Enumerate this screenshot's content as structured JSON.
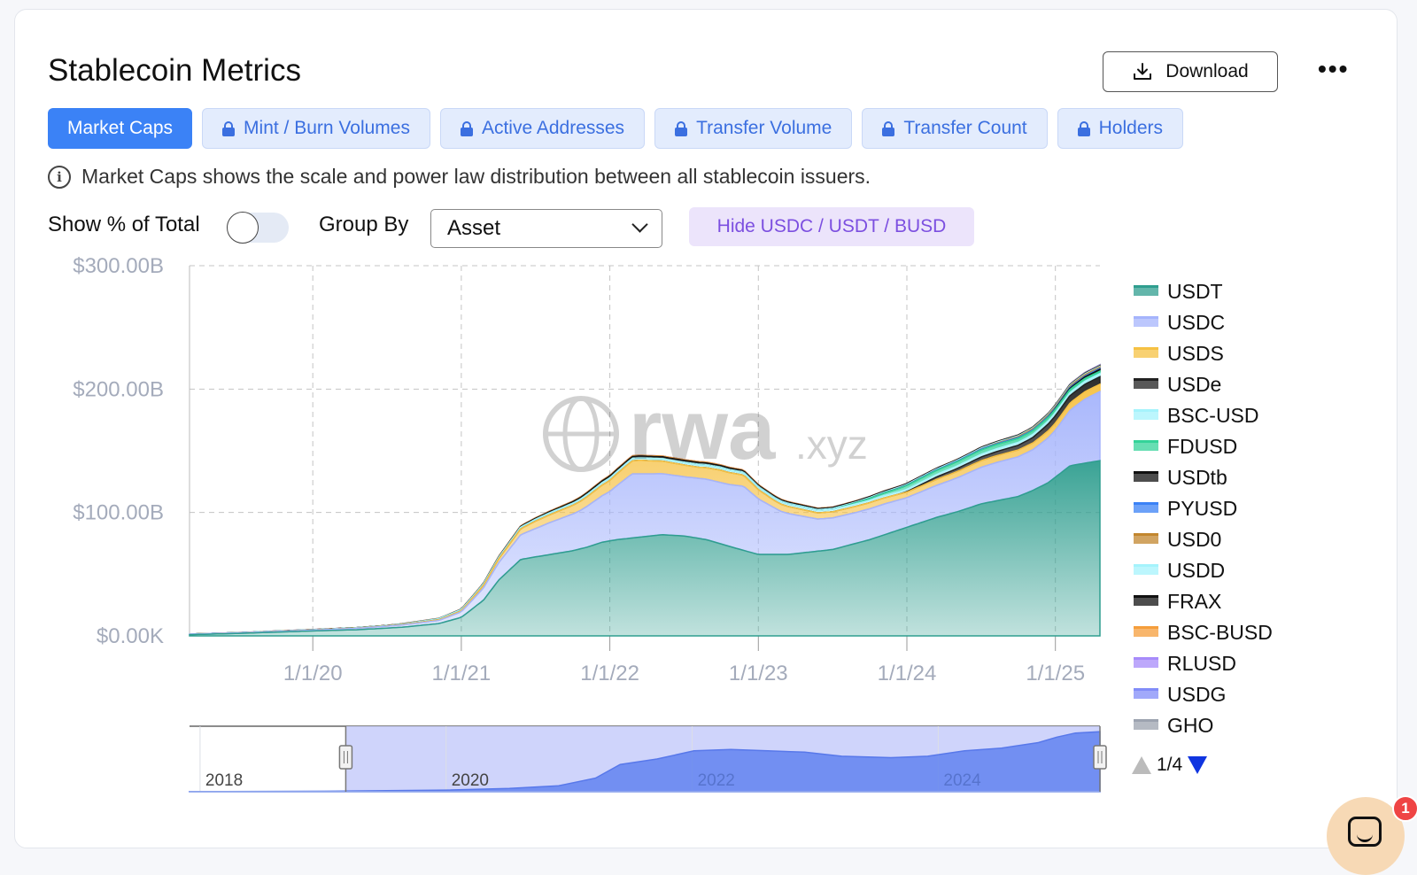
{
  "header": {
    "title": "Stablecoin Metrics",
    "download_label": "Download",
    "more_label": "•••"
  },
  "tabs": [
    {
      "label": "Market Caps",
      "active": true,
      "locked": false
    },
    {
      "label": "Mint / Burn Volumes",
      "active": false,
      "locked": true
    },
    {
      "label": "Active Addresses",
      "active": false,
      "locked": true
    },
    {
      "label": "Transfer Volume",
      "active": false,
      "locked": true
    },
    {
      "label": "Transfer Count",
      "active": false,
      "locked": true
    },
    {
      "label": "Holders",
      "active": false,
      "locked": true
    }
  ],
  "info": {
    "text": "Market Caps shows the scale and power law distribution between all stablecoin issuers."
  },
  "controls": {
    "show_pct_label": "Show % of Total",
    "show_pct_on": false,
    "group_by_label": "Group By",
    "group_by_value": "Asset",
    "hide_button": "Hide USDC / USDT / BUSD"
  },
  "watermark": {
    "main": "rwa",
    "suffix": ".xyz"
  },
  "colors": {
    "accent": "#3b82f6",
    "usdt": "#2f9e8f",
    "usdc": "#a5b4fc",
    "usds": "#f6c143"
  },
  "chart_data": {
    "type": "area",
    "stacked": true,
    "x_ticks": [
      "1/1/20",
      "1/1/21",
      "1/1/22",
      "1/1/23",
      "1/1/24",
      "1/1/25"
    ],
    "y_ticks": [
      "$0.00K",
      "$100.00B",
      "$200.00B",
      "$300.00B"
    ],
    "ylim": [
      0,
      300
    ],
    "x_range": [
      2019.17,
      2025.3
    ],
    "grid": true,
    "legend_position": "right",
    "series": [
      {
        "name": "USDT",
        "color": "#2f9e8f",
        "x": [
          2019.17,
          2019.5,
          2020.0,
          2020.3,
          2020.6,
          2020.85,
          2021.0,
          2021.15,
          2021.25,
          2021.4,
          2021.6,
          2021.75,
          2021.85,
          2021.95,
          2022.05,
          2022.2,
          2022.35,
          2022.5,
          2022.65,
          2022.85,
          2023.0,
          2023.2,
          2023.5,
          2023.75,
          2023.85,
          2024.0,
          2024.2,
          2024.35,
          2024.5,
          2024.75,
          2024.85,
          2024.95,
          2025.1,
          2025.3
        ],
        "values": [
          1,
          2,
          4,
          5,
          7,
          10,
          15,
          29,
          45,
          62,
          66,
          69,
          72,
          76,
          78,
          80,
          82,
          81,
          78,
          71,
          66,
          66,
          70,
          78,
          82,
          88,
          96,
          101,
          107,
          113,
          118,
          124,
          138,
          142
        ]
      },
      {
        "name": "USDC",
        "color": "#a5b4fc",
        "x": [
          2019.17,
          2019.5,
          2020.0,
          2020.5,
          2020.85,
          2021.0,
          2021.1,
          2021.25,
          2021.4,
          2021.6,
          2021.8,
          2022.0,
          2022.15,
          2022.3,
          2022.5,
          2022.65,
          2022.8,
          2022.9,
          2023.0,
          2023.15,
          2023.4,
          2023.65,
          2023.85,
          2024.0,
          2024.3,
          2024.6,
          2024.85,
          2025.0,
          2025.2,
          2025.3
        ],
        "values": [
          0.5,
          0.5,
          0.7,
          1.5,
          2.5,
          4.5,
          8,
          14,
          20,
          26,
          31,
          40,
          52,
          50,
          48,
          49,
          50,
          52,
          45,
          35,
          26,
          25,
          25,
          24,
          27,
          31,
          33,
          38,
          52,
          56
        ]
      },
      {
        "name": "USDS",
        "color": "#f6c143",
        "x": [
          2019.17,
          2020.5,
          2021.0,
          2021.25,
          2021.5,
          2021.75,
          2022.0,
          2022.2,
          2022.4,
          2022.6,
          2022.75,
          2022.9,
          2023.1,
          2023.4,
          2023.8,
          2024.0,
          2024.3,
          2024.6,
          2024.9,
          2025.1,
          2025.3
        ],
        "values": [
          0,
          0.2,
          0.8,
          3,
          6,
          7,
          9,
          11,
          10,
          9,
          10,
          9,
          6,
          5,
          5,
          4.5,
          5,
          5.5,
          5.5,
          6,
          6
        ]
      },
      {
        "name": "USDe",
        "color": "#222222",
        "x": [
          2019.17,
          2023.95,
          2024.2,
          2024.5,
          2024.8,
          2025.0,
          2025.3
        ],
        "values": [
          0,
          0,
          2,
          3,
          4,
          6,
          6
        ]
      },
      {
        "name": "BSC-USD",
        "color": "#a5f3fc",
        "x": [
          2019.17,
          2020.5,
          2021.0,
          2021.5,
          2022.0,
          2023.0,
          2024.0,
          2025.0,
          2025.3
        ],
        "values": [
          0,
          0.3,
          1,
          1.5,
          2,
          2,
          2,
          2.5,
          2.5
        ]
      },
      {
        "name": "FDUSD",
        "color": "#34d399",
        "x": [
          2019.17,
          2023.5,
          2023.7,
          2024.0,
          2024.5,
          2024.9,
          2025.1,
          2025.3
        ],
        "values": [
          0,
          0,
          1,
          3,
          3.5,
          3,
          2.5,
          2
        ]
      },
      {
        "name": "USDtb",
        "color": "#111111",
        "x": [
          2019.17,
          2024.9,
          2025.1,
          2025.3
        ],
        "values": [
          0,
          0,
          1,
          1.5
        ]
      },
      {
        "name": "PYUSD",
        "color": "#3b82f6",
        "x": [
          2019.17,
          2023.6,
          2024.0,
          2024.5,
          2025.0,
          2025.3
        ],
        "values": [
          0,
          0,
          0.3,
          0.6,
          0.8,
          0.8
        ]
      },
      {
        "name": "USD0",
        "color": "#c2862e",
        "x": [
          2019.17,
          2024.4,
          2024.8,
          2025.3
        ],
        "values": [
          0,
          0,
          0.8,
          1
        ]
      },
      {
        "name": "USDD",
        "color": "#a5f3fc",
        "x": [
          2019.17,
          2022.4,
          2022.6,
          2023.5,
          2024.5,
          2025.3
        ],
        "values": [
          0,
          0,
          0.5,
          0.7,
          0.7,
          0.7
        ]
      },
      {
        "name": "FRAX",
        "color": "#111111",
        "x": [
          2019.17,
          2020.9,
          2021.5,
          2022.0,
          2022.5,
          2023.0,
          2023.5,
          2024.0,
          2025.3
        ],
        "values": [
          0,
          0.2,
          0.8,
          1.5,
          1.5,
          1,
          0.8,
          0.6,
          0.5
        ]
      },
      {
        "name": "BSC-BUSD",
        "color": "#f59e3b",
        "x": [
          2019.17,
          2020.8,
          2021.5,
          2022.0,
          2022.7,
          2023.2,
          2023.6,
          2024.0,
          2025.3
        ],
        "values": [
          0,
          0.1,
          0.4,
          0.6,
          0.6,
          0.4,
          0.2,
          0.1,
          0.1
        ]
      },
      {
        "name": "RLUSD",
        "color": "#a78bfa",
        "x": [
          2019.17,
          2024.95,
          2025.3
        ],
        "values": [
          0,
          0,
          0.3
        ]
      },
      {
        "name": "USDG",
        "color": "#818cf8",
        "x": [
          2019.17,
          2024.7,
          2025.3
        ],
        "values": [
          0,
          0,
          0.2
        ]
      },
      {
        "name": "GHO",
        "color": "#9ca3af",
        "x": [
          2019.17,
          2023.5,
          2025.3
        ],
        "values": [
          0,
          0,
          0.2
        ]
      }
    ],
    "navigator": {
      "tick_labels": [
        "2018",
        "2020",
        "2022",
        "2024"
      ],
      "x_range": [
        2017.9,
        2025.3
      ],
      "selection": [
        2019.17,
        2025.3
      ],
      "x": [
        2017.9,
        2019.0,
        2019.5,
        2020.0,
        2020.5,
        2020.9,
        2021.2,
        2021.4,
        2021.7,
        2022.0,
        2022.3,
        2022.6,
        2022.9,
        2023.2,
        2023.6,
        2023.9,
        2024.2,
        2024.5,
        2024.8,
        2024.95,
        2025.1,
        2025.3
      ],
      "values": [
        0.5,
        2,
        4,
        6,
        12,
        22,
        50,
        100,
        120,
        150,
        155,
        150,
        145,
        130,
        125,
        130,
        150,
        160,
        180,
        200,
        215,
        220
      ],
      "ylim": [
        0,
        240
      ]
    },
    "legend_pager": {
      "text": "1/4"
    }
  }
}
